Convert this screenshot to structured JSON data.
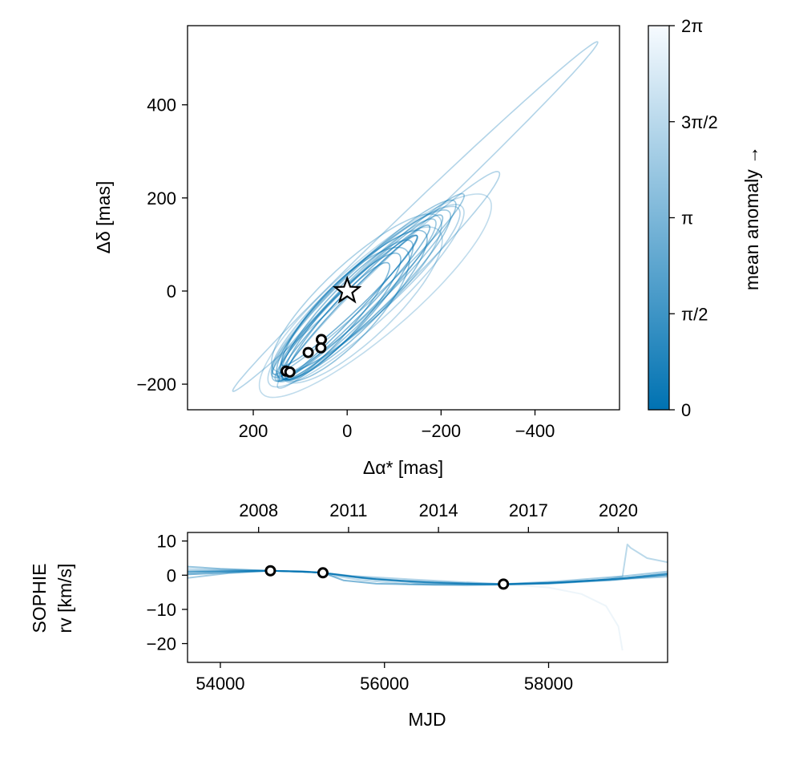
{
  "chart_data": [
    {
      "type": "scatter",
      "xlabel": "Δα* [mas]",
      "ylabel": "Δδ [mas]",
      "xlim": [
        340,
        -580
      ],
      "ylim": [
        -255,
        570
      ],
      "x_inverted": true,
      "xticks": [
        200,
        0,
        -200,
        -400
      ],
      "xtick_labels": [
        "200",
        "0",
        "−200",
        "−400"
      ],
      "yticks": [
        -200,
        0,
        200,
        400
      ],
      "ytick_labels": [
        "−200",
        "0",
        "200",
        "400"
      ],
      "star": {
        "x": 0,
        "y": 0
      },
      "points": [
        {
          "x": 130,
          "y": -172
        },
        {
          "x": 122,
          "y": -174
        },
        {
          "x": 83,
          "y": -132
        },
        {
          "x": 55,
          "y": -104
        },
        {
          "x": 56,
          "y": -122
        }
      ],
      "orbits": [
        {
          "cx": -145,
          "cy": 160,
          "a": 540,
          "b": 22,
          "angle": 44.0,
          "opacity": 0.55
        },
        {
          "cx": -60,
          "cy": -10,
          "a": 320,
          "b": 80,
          "angle": 41.0,
          "opacity": 0.45
        },
        {
          "cx": -88,
          "cy": 24,
          "a": 330,
          "b": 35,
          "angle": 44.5,
          "opacity": 0.55
        },
        {
          "cx": -40,
          "cy": -10,
          "a": 280,
          "b": 60,
          "angle": 43.0,
          "opacity": 0.5
        },
        {
          "cx": -20,
          "cy": -20,
          "a": 240,
          "b": 40,
          "angle": 46.0,
          "opacity": 0.7
        },
        {
          "cx": -30,
          "cy": -10,
          "a": 260,
          "b": 50,
          "angle": 44.0,
          "opacity": 0.7
        },
        {
          "cx": -10,
          "cy": -30,
          "a": 220,
          "b": 55,
          "angle": 45.0,
          "opacity": 0.8
        },
        {
          "cx": -35,
          "cy": 5,
          "a": 270,
          "b": 45,
          "angle": 44.0,
          "opacity": 0.7
        },
        {
          "cx": 0,
          "cy": -40,
          "a": 200,
          "b": 45,
          "angle": 47.0,
          "opacity": 0.85
        },
        {
          "cx": -25,
          "cy": -15,
          "a": 250,
          "b": 35,
          "angle": 45.0,
          "opacity": 0.8
        },
        {
          "cx": 10,
          "cy": -55,
          "a": 180,
          "b": 40,
          "angle": 48.0,
          "opacity": 0.85
        },
        {
          "cx": -15,
          "cy": -25,
          "a": 230,
          "b": 28,
          "angle": 46.0,
          "opacity": 0.9
        },
        {
          "cx": -45,
          "cy": 15,
          "a": 280,
          "b": 30,
          "angle": 43.5,
          "opacity": 0.7
        },
        {
          "cx": 5,
          "cy": -50,
          "a": 190,
          "b": 60,
          "angle": 46.5,
          "opacity": 0.75
        },
        {
          "cx": -20,
          "cy": -5,
          "a": 240,
          "b": 65,
          "angle": 43.0,
          "opacity": 0.6
        },
        {
          "cx": -5,
          "cy": -35,
          "a": 210,
          "b": 20,
          "angle": 47.0,
          "opacity": 0.95
        },
        {
          "cx": 20,
          "cy": -65,
          "a": 165,
          "b": 30,
          "angle": 49.0,
          "opacity": 0.9
        },
        {
          "cx": -30,
          "cy": -30,
          "a": 230,
          "b": 70,
          "angle": 44.0,
          "opacity": 0.5
        },
        {
          "cx": -5,
          "cy": -20,
          "a": 200,
          "b": 25,
          "angle": 44.0,
          "opacity": 0.95
        },
        {
          "cx": -40,
          "cy": 0,
          "a": 265,
          "b": 55,
          "angle": 42.0,
          "opacity": 0.55
        }
      ],
      "colorbar": {
        "label": "mean anomaly →",
        "ticks": [
          0,
          1.5708,
          3.1416,
          4.7124,
          6.2832
        ],
        "tick_labels": [
          "0",
          "π/2",
          "π",
          "3π/2",
          "2π"
        ],
        "colors": [
          "#0072b2",
          "#f7fbff"
        ]
      }
    },
    {
      "type": "line",
      "xlabel": "MJD",
      "ylabel_line1": "SOPHIE",
      "ylabel_line2": "rv [km/s]",
      "xlim": [
        53600,
        59450
      ],
      "ylim": [
        -25.5,
        12.5
      ],
      "xticks": [
        54000,
        56000,
        58000
      ],
      "xtick_labels": [
        "54000",
        "56000",
        "58000"
      ],
      "yticks": [
        -20,
        -10,
        0,
        10
      ],
      "ytick_labels": [
        "−20",
        "−10",
        "0",
        "10"
      ],
      "top_axis": {
        "tick_mjd": [
          54466,
          55562,
          56658,
          57754,
          58849
        ],
        "tick_labels": [
          "2008",
          "2011",
          "2014",
          "2017",
          "2020"
        ]
      },
      "points": [
        {
          "x": 54610,
          "y": 1.3
        },
        {
          "x": 55250,
          "y": 0.7
        },
        {
          "x": 57450,
          "y": -2.6
        }
      ],
      "curves": [
        {
          "x": [
            53600,
            54000,
            54610,
            55000,
            55250,
            55600,
            56200,
            57000,
            57450,
            58000,
            58800,
            59450
          ],
          "y": [
            2.5,
            1.9,
            1.3,
            1.0,
            0.7,
            -0.4,
            -1.6,
            -2.4,
            -2.6,
            -2.2,
            -1.2,
            -0.1
          ],
          "opacity": 0.7
        },
        {
          "x": [
            53600,
            54000,
            54610,
            55000,
            55250,
            55700,
            56400,
            57000,
            57450,
            58000,
            58800,
            59450
          ],
          "y": [
            1.2,
            1.3,
            1.3,
            1.0,
            0.7,
            -0.8,
            -2.2,
            -2.6,
            -2.7,
            -2.5,
            -1.4,
            0.2
          ],
          "opacity": 0.8
        },
        {
          "x": [
            53600,
            54200,
            54610,
            55000,
            55250,
            55500,
            55900,
            56600,
            57450,
            58200,
            58900,
            59450
          ],
          "y": [
            0.2,
            0.9,
            1.3,
            1.1,
            0.7,
            -1.5,
            -2.5,
            -2.8,
            -2.7,
            -2.1,
            -0.9,
            0.6
          ],
          "opacity": 0.85
        },
        {
          "x": [
            53600,
            54100,
            54610,
            55100,
            55250,
            55800,
            56500,
            57200,
            57450,
            58100,
            58900,
            59450
          ],
          "y": [
            -0.8,
            0.6,
            1.3,
            0.9,
            0.7,
            -1.0,
            -2.0,
            -2.6,
            -2.6,
            -1.8,
            -0.3,
            1.1
          ],
          "opacity": 0.6
        },
        {
          "x": [
            53600,
            54300,
            54610,
            55000,
            55250,
            55600,
            56300,
            57000,
            57450,
            58300,
            59000,
            59450
          ],
          "y": [
            1.8,
            1.5,
            1.3,
            1.2,
            0.7,
            -0.2,
            -1.2,
            -2.1,
            -2.6,
            -2.0,
            -1.0,
            -0.5
          ],
          "opacity": 0.5
        },
        {
          "x": [
            53600,
            54000,
            54610,
            55000,
            55250,
            55400,
            55700,
            56300,
            57000,
            57450,
            58000,
            58600,
            58900,
            58960,
            59000,
            59200,
            59450
          ],
          "y": [
            0.5,
            1.0,
            1.3,
            1.0,
            0.7,
            -0.2,
            -1.4,
            -2.6,
            -3.0,
            -2.8,
            -2.4,
            -1.4,
            -0.4,
            9.0,
            8.0,
            5.0,
            3.8
          ],
          "opacity": 0.45
        },
        {
          "x": [
            57000,
            57450,
            58000,
            58400,
            58700,
            58850,
            58900
          ],
          "y": [
            -2.0,
            -2.6,
            -3.6,
            -5.5,
            -9.0,
            -15.0,
            -22.0
          ],
          "opacity": 0.12
        },
        {
          "x": [
            53600,
            54200,
            54610,
            55000,
            55250,
            55900,
            56600,
            57200,
            57450,
            58000,
            58700,
            59450
          ],
          "y": [
            0.9,
            1.2,
            1.3,
            1.0,
            0.7,
            -1.2,
            -2.2,
            -2.6,
            -2.6,
            -2.3,
            -1.3,
            0.3
          ],
          "opacity": 0.9
        }
      ]
    }
  ]
}
